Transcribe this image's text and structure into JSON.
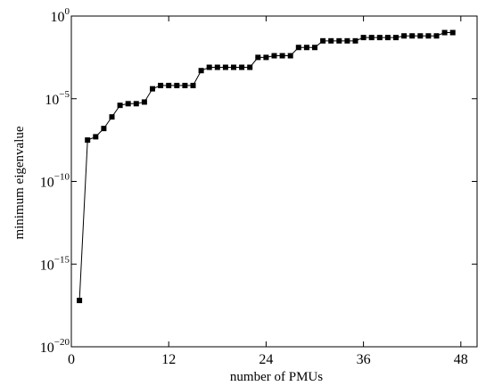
{
  "chart_data": {
    "type": "line",
    "title": "",
    "xlabel": "number of PMUs",
    "ylabel": "minimum eigenvalue",
    "xlim": [
      0,
      50
    ],
    "ylim_exponent": [
      -20,
      0
    ],
    "yscale": "log",
    "grid": false,
    "x_ticks": [
      "0",
      "12",
      "24",
      "36",
      "48"
    ],
    "x_tick_values": [
      0,
      12,
      24,
      36,
      48
    ],
    "y_ticks": [
      {
        "base": "10",
        "exp": "0",
        "value_exp": 0
      },
      {
        "base": "10",
        "exp": "−5",
        "value_exp": -5
      },
      {
        "base": "10",
        "exp": "−10",
        "value_exp": -10
      },
      {
        "base": "10",
        "exp": "−15",
        "value_exp": -15
      },
      {
        "base": "10",
        "exp": "−20",
        "value_exp": -20
      }
    ],
    "series": [
      {
        "marker": "square",
        "color": "#000000",
        "x": [
          1,
          2,
          3,
          4,
          5,
          6,
          7,
          8,
          9,
          10,
          11,
          12,
          13,
          14,
          15,
          16,
          17,
          18,
          19,
          20,
          21,
          22,
          23,
          24,
          25,
          26,
          27,
          28,
          29,
          30,
          31,
          32,
          33,
          34,
          35,
          36,
          37,
          38,
          39,
          40,
          41,
          42,
          43,
          44,
          45,
          46,
          47
        ],
        "y_log10": [
          -17.2,
          -7.5,
          -7.3,
          -6.8,
          -6.1,
          -5.4,
          -5.3,
          -5.3,
          -5.2,
          -4.4,
          -4.2,
          -4.2,
          -4.2,
          -4.2,
          -4.2,
          -3.3,
          -3.1,
          -3.1,
          -3.1,
          -3.1,
          -3.1,
          -3.1,
          -2.5,
          -2.5,
          -2.4,
          -2.4,
          -2.4,
          -1.9,
          -1.9,
          -1.9,
          -1.5,
          -1.5,
          -1.5,
          -1.5,
          -1.5,
          -1.3,
          -1.3,
          -1.3,
          -1.3,
          -1.3,
          -1.2,
          -1.2,
          -1.2,
          -1.2,
          -1.2,
          -1.0,
          -1.0
        ]
      }
    ]
  }
}
